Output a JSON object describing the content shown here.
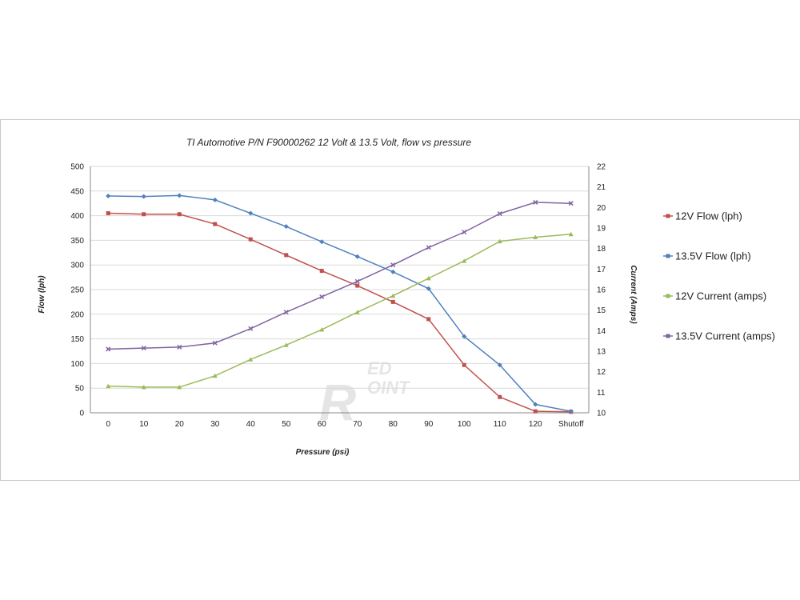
{
  "chart_data": {
    "type": "line",
    "title": "TI Automotive P/N F90000262  12 Volt & 13.5 Volt, flow vs pressure",
    "xlabel": "Pressure (psi)",
    "ylabel": "Flow (lph)",
    "y2label": "Current  (Amps)",
    "categories": [
      "0",
      "10",
      "20",
      "30",
      "40",
      "50",
      "60",
      "70",
      "80",
      "90",
      "100",
      "110",
      "120",
      "Shutoff"
    ],
    "ylim": [
      0,
      500
    ],
    "yticks": [
      "0",
      "50",
      "100",
      "150",
      "200",
      "250",
      "300",
      "350",
      "400",
      "450",
      "500"
    ],
    "y2lim": [
      10,
      22
    ],
    "y2ticks": [
      "10",
      "11",
      "12",
      "13",
      "14",
      "15",
      "16",
      "17",
      "18",
      "19",
      "20",
      "21",
      "22"
    ],
    "grid": "horizontal",
    "legend": "right",
    "series": [
      {
        "name": "12V Flow (lph)",
        "axis": "left",
        "color": "#c0504d",
        "marker": "square",
        "values": [
          405,
          403,
          403,
          383,
          352,
          320,
          288,
          258,
          225,
          190,
          97,
          32,
          3,
          2
        ]
      },
      {
        "name": "13.5V Flow (lph)",
        "axis": "left",
        "color": "#4f81bd",
        "marker": "diamond",
        "values": [
          440,
          439,
          441,
          432,
          405,
          378,
          347,
          317,
          286,
          252,
          155,
          97,
          17,
          3
        ]
      },
      {
        "name": "12V Current (amps)",
        "axis": "right",
        "color": "#9bbb59",
        "marker": "triangle",
        "values": [
          11.3,
          11.25,
          11.25,
          11.8,
          12.6,
          13.3,
          14.05,
          14.9,
          15.7,
          16.55,
          17.4,
          18.35,
          18.55,
          18.7
        ]
      },
      {
        "name": "13.5V Current (amps)",
        "axis": "right",
        "color": "#8064a2",
        "marker": "x",
        "values": [
          13.1,
          13.15,
          13.2,
          13.4,
          14.1,
          14.9,
          15.65,
          16.4,
          17.2,
          18.05,
          18.8,
          19.7,
          20.25,
          20.2
        ]
      }
    ]
  },
  "watermark": {
    "main": "R",
    "top": "ED",
    "bottom": "OINT"
  }
}
